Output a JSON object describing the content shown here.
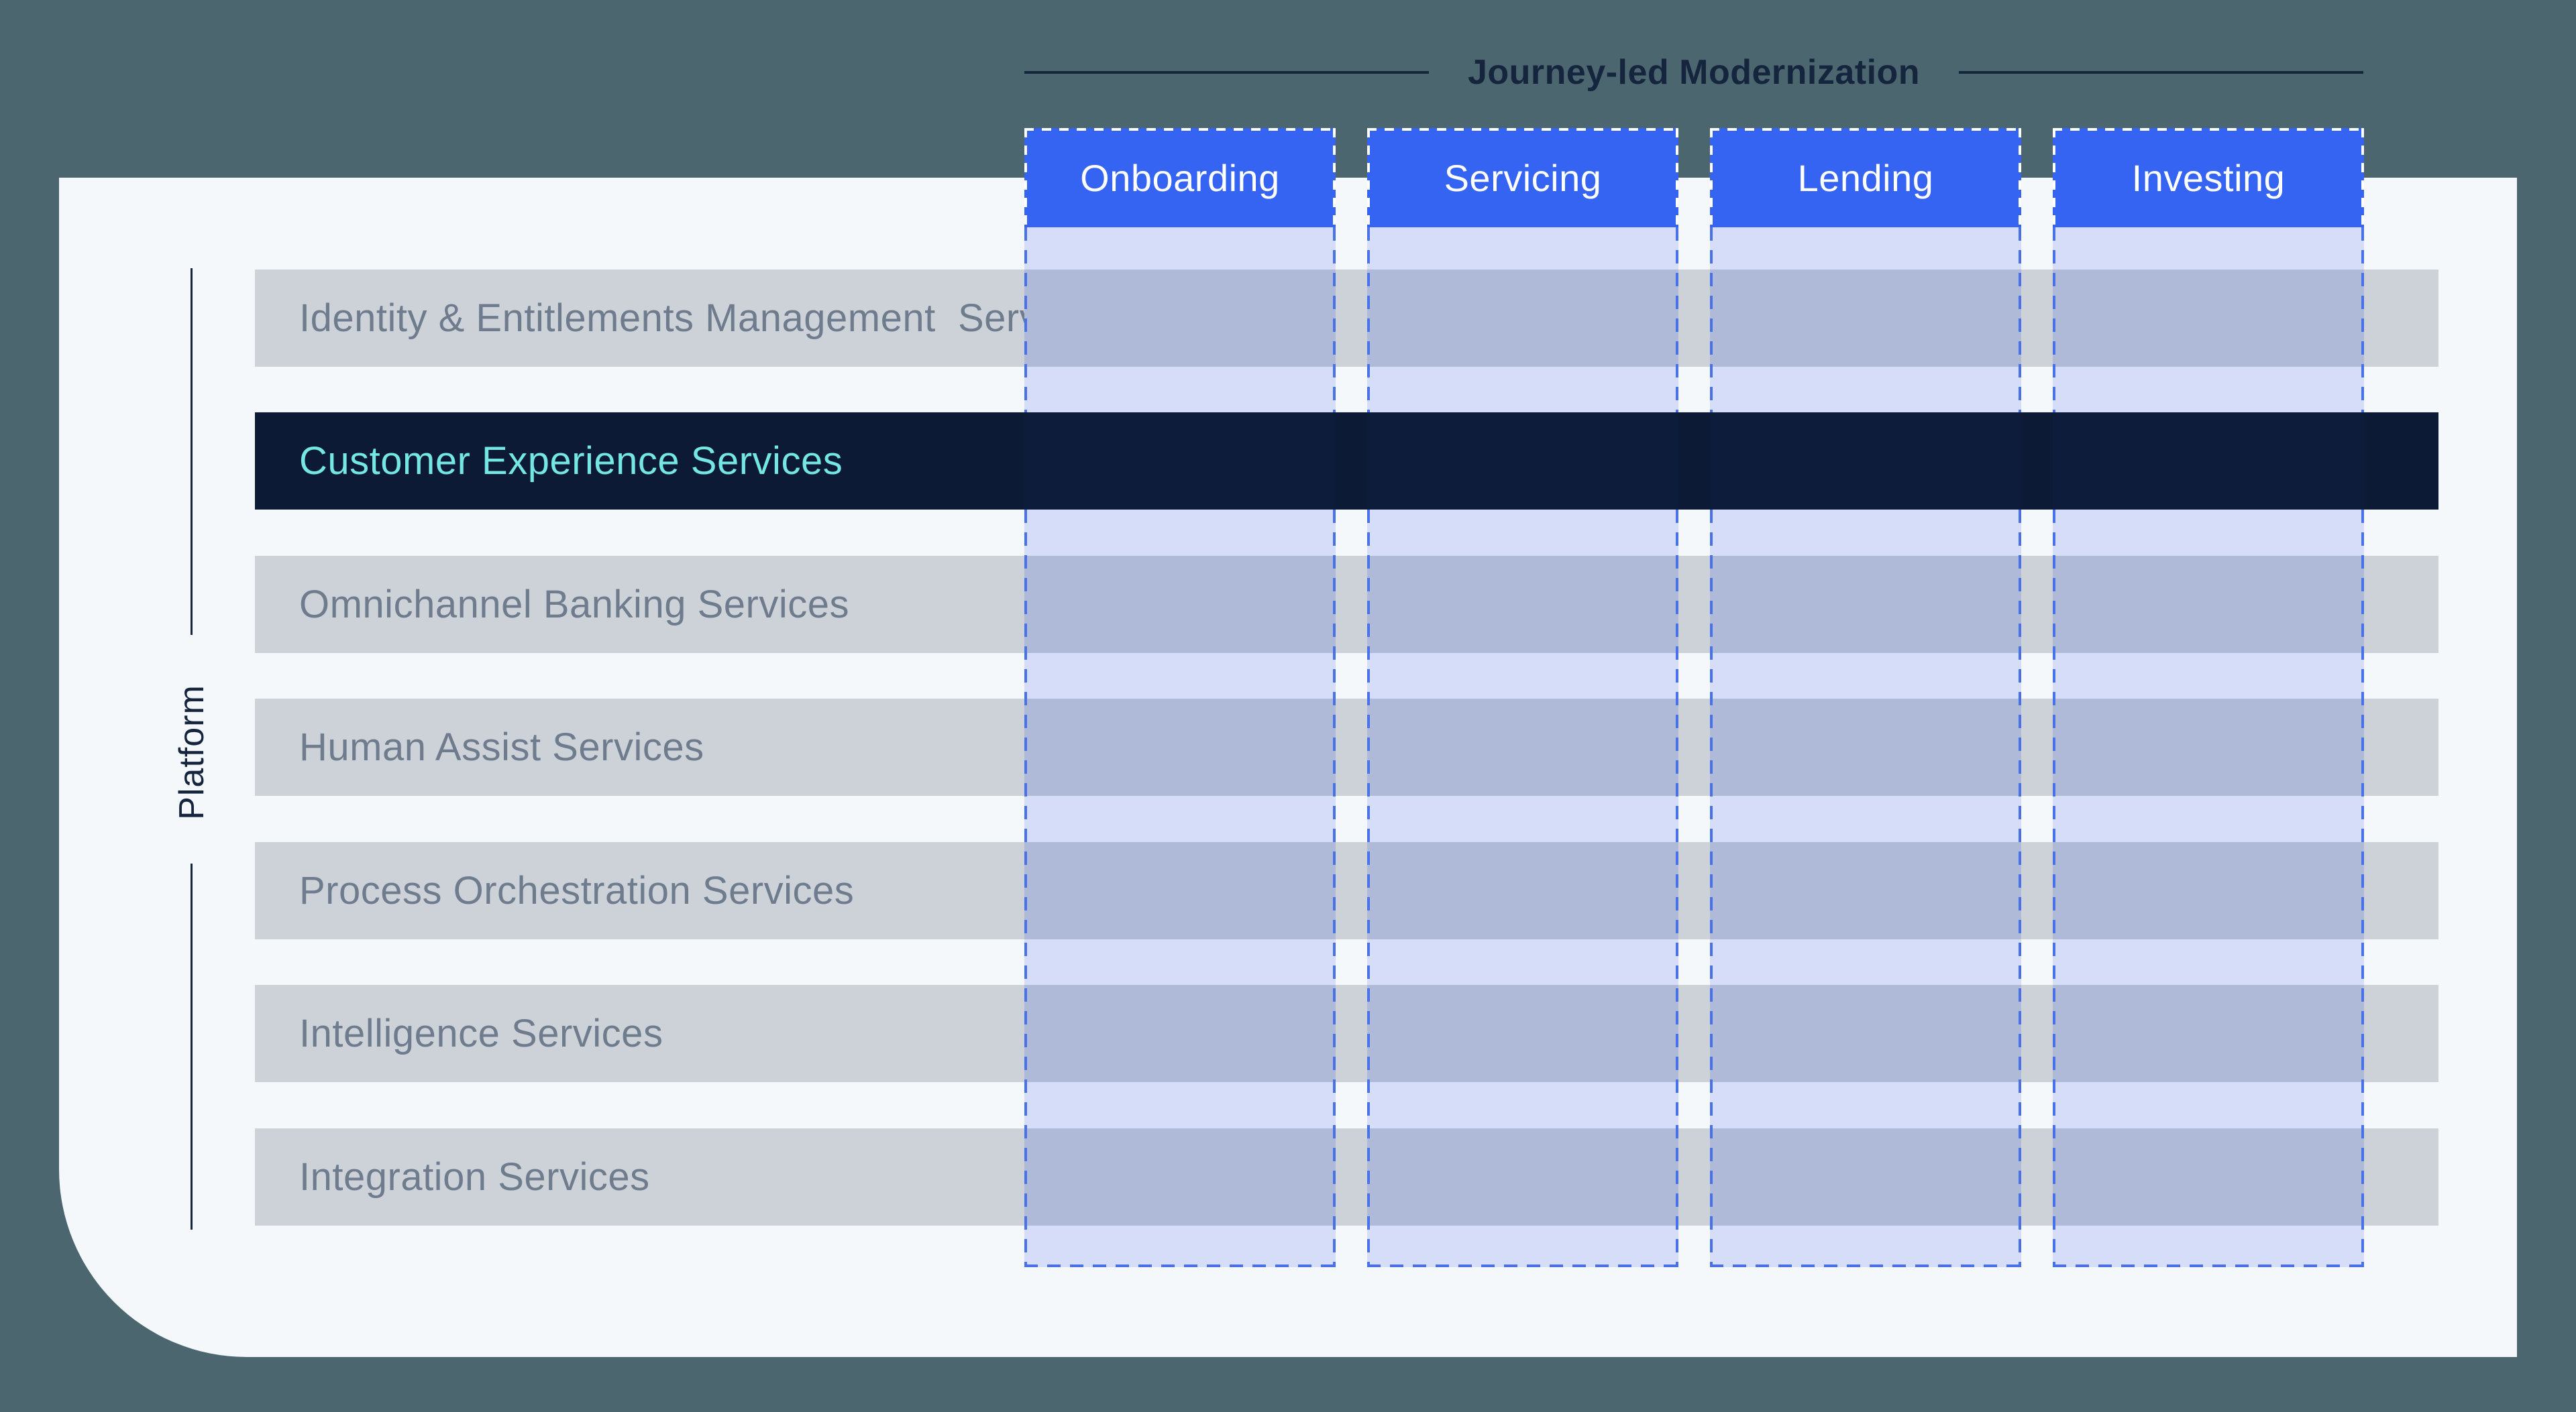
{
  "title": {
    "text": "Journey-led Modernization"
  },
  "platform": {
    "label": "Platform"
  },
  "columns": [
    {
      "label": "Onboarding"
    },
    {
      "label": "Servicing"
    },
    {
      "label": "Lending"
    },
    {
      "label": "Investing"
    }
  ],
  "rows": [
    {
      "label": "Identity & Entitlements Management  Services",
      "highlighted": false
    },
    {
      "label": "Customer Experience Services",
      "highlighted": true
    },
    {
      "label": "Omnichannel Banking Services",
      "highlighted": false
    },
    {
      "label": "Human Assist Services",
      "highlighted": false
    },
    {
      "label": "Process Orchestration Services",
      "highlighted": false
    },
    {
      "label": "Intelligence Services",
      "highlighted": false
    },
    {
      "label": "Integration Services",
      "highlighted": false
    }
  ],
  "colors": {
    "background": "#4B666E",
    "card": "#F4F8FB",
    "row": "#CDD2D8",
    "row_text": "#6E7C8E",
    "highlight_row": "#0C1A35",
    "highlight_text": "#74E6E3",
    "header": "#3563F2",
    "header_text": "#FFFFFF",
    "overlay_light": "#D5DDF8",
    "overlay_on_row": "#AFBAD8",
    "overlay_on_highlight": "#0D1C3A",
    "dash_blue": "#4A72E8",
    "dash_white": "#FFFFFF",
    "title_text": "#15253E"
  }
}
